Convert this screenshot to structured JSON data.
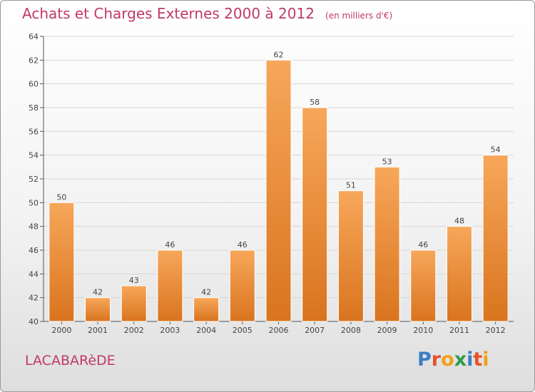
{
  "header": {
    "title": "Achats et Charges Externes 2000 à 2012",
    "subtitle": "(en milliers d'€)"
  },
  "footer": {
    "town": "LACABARèDE",
    "logo": "Proxiti"
  },
  "colors": {
    "title": "#c1386a",
    "bar_top": "#f7a75a",
    "bar_bottom": "#d9741f",
    "logo_letters": [
      "#3b7fc4",
      "#e8502a",
      "#f2a01b",
      "#2f9c4a",
      "#3b7fc4",
      "#e8502a",
      "#f2a01b"
    ]
  },
  "chart_data": {
    "type": "bar",
    "categories": [
      "2000",
      "2001",
      "2002",
      "2003",
      "2004",
      "2005",
      "2006",
      "2007",
      "2008",
      "2009",
      "2010",
      "2011",
      "2012"
    ],
    "values": [
      50,
      42,
      43,
      46,
      42,
      46,
      62,
      58,
      51,
      53,
      46,
      48,
      54
    ],
    "data_labels": [
      "50",
      "42",
      "43",
      "46",
      "42",
      "46",
      "62",
      "58",
      "51",
      "53",
      "46",
      "48",
      "54"
    ],
    "y_ticks": [
      "40",
      "42",
      "44",
      "46",
      "48",
      "50",
      "52",
      "54",
      "56",
      "58",
      "60",
      "62",
      "64"
    ],
    "ylim": [
      40,
      64
    ],
    "xlabel": "",
    "ylabel": "",
    "grid": true
  }
}
